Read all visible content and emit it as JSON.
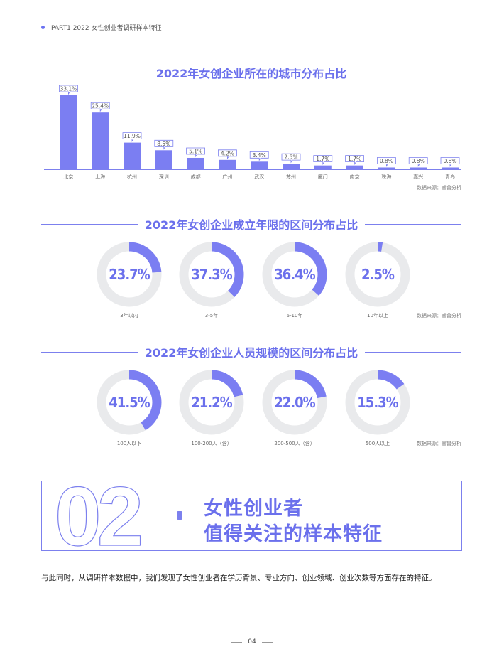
{
  "header": {
    "text": "PART1  2022 女性创业者调研样本特征"
  },
  "section1": {
    "title": "2022年女创企业所在的城市分布占比",
    "source": "数据来源：睿兽分析"
  },
  "chart_data": [
    {
      "type": "bar",
      "title": "2022年女创企业所在的城市分布占比",
      "categories": [
        "北京",
        "上海",
        "杭州",
        "深圳",
        "成都",
        "广州",
        "武汉",
        "苏州",
        "厦门",
        "南京",
        "珠海",
        "嘉兴",
        "青岛"
      ],
      "values": [
        33.1,
        25.4,
        11.9,
        8.5,
        5.1,
        4.2,
        3.4,
        2.5,
        1.7,
        1.7,
        0.8,
        0.8,
        0.8
      ],
      "value_labels": [
        "33.1%",
        "25.4%",
        "11.9%",
        "8.5%",
        "5.1%",
        "4.2%",
        "3.4%",
        "2.5%",
        "1.7%",
        "1.7%",
        "0.8%",
        "0.8%",
        "0.8%"
      ],
      "unit": "%",
      "grid": false,
      "color": "#7b7ef2"
    },
    {
      "type": "pie",
      "title": "2022年女创企业成立年限的区间分布占比",
      "categories": [
        "3年以内",
        "3-5年",
        "6-10年",
        "10年以上"
      ],
      "values": [
        23.7,
        37.3,
        36.4,
        2.5
      ],
      "value_labels": [
        "23.7%",
        "37.3%",
        "36.4%",
        "2.5%"
      ]
    },
    {
      "type": "pie",
      "title": "2022年女创企业人员规模的区间分布占比",
      "categories": [
        "100人以下",
        "100-200人（含）",
        "200-500人（含）",
        "500人以上"
      ],
      "values": [
        41.5,
        21.2,
        22.0,
        15.3
      ],
      "value_labels": [
        "41.5%",
        "21.2%",
        "22.0%",
        "15.3%"
      ]
    }
  ],
  "section2": {
    "title": "2022年女创企业成立年限的区间分布占比",
    "source": "数据来源：睿兽分析"
  },
  "section3": {
    "title": "2022年女创企业人员规模的区间分布占比",
    "source": "数据来源：睿兽分析"
  },
  "banner": {
    "number": "02",
    "line1": "女性创业者",
    "line2": "值得关注的样本特征"
  },
  "paragraph": "与此同时，从调研样本数据中，我们发现了女性创业者在学历背景、专业方向、创业领域、创业次数等方面存在的特征。",
  "footer": {
    "page": "04"
  },
  "colors": {
    "accent": "#7b7ef2",
    "track": "#e9eaec",
    "title": "#6b70ec"
  }
}
